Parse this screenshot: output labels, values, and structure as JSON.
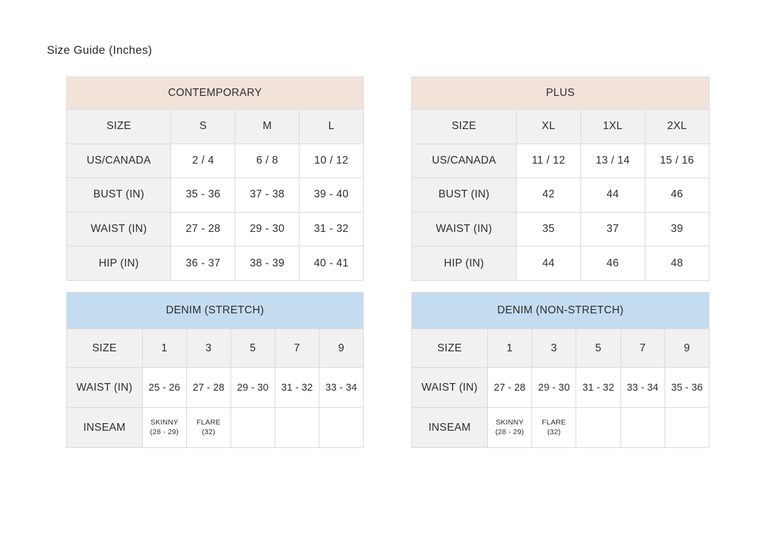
{
  "page": {
    "title": "Size Guide (Inches)"
  },
  "colors": {
    "contemporary_header_bg": "#f2e3da",
    "denim_header_bg": "#c3dcf0",
    "label_cell_bg": "#f2f1f2",
    "border": "#dadada",
    "text": "#2d2d2d"
  },
  "tables": {
    "contemporary": {
      "title": "CONTEMPORARY",
      "size_row": {
        "label": "SIZE",
        "values": [
          "S",
          "M",
          "L"
        ]
      },
      "rows": [
        {
          "label": "US/CANADA",
          "values": [
            "2 / 4",
            "6 / 8",
            "10 / 12"
          ]
        },
        {
          "label": "BUST (IN)",
          "values": [
            "35 - 36",
            "37 - 38",
            "39 - 40"
          ]
        },
        {
          "label": "WAIST (IN)",
          "values": [
            "27 - 28",
            "29 - 30",
            "31 - 32"
          ]
        },
        {
          "label": "HIP (IN)",
          "values": [
            "36 - 37",
            "38 - 39",
            "40 - 41"
          ]
        }
      ]
    },
    "plus": {
      "title": "PLUS",
      "size_row": {
        "label": "SIZE",
        "values": [
          "XL",
          "1XL",
          "2XL"
        ]
      },
      "rows": [
        {
          "label": "US/CANADA",
          "values": [
            "11 / 12",
            "13 / 14",
            "15 / 16"
          ]
        },
        {
          "label": "BUST (IN)",
          "values": [
            "42",
            "44",
            "46"
          ]
        },
        {
          "label": "WAIST (IN)",
          "values": [
            "35",
            "37",
            "39"
          ]
        },
        {
          "label": "HIP (IN)",
          "values": [
            "44",
            "46",
            "48"
          ]
        }
      ]
    },
    "denim_stretch": {
      "title": "DENIM (STRETCH)",
      "size_row": {
        "label": "SIZE",
        "values": [
          "1",
          "3",
          "5",
          "7",
          "9"
        ]
      },
      "waist_row": {
        "label": "WAIST (IN)",
        "values": [
          "25 - 26",
          "27 - 28",
          "29 - 30",
          "31 - 32",
          "33 - 34"
        ]
      },
      "inseam_row": {
        "label": "INSEAM",
        "cells": [
          {
            "style": "SKINNY",
            "detail": "(28 - 29)"
          },
          {
            "style": "FLARE",
            "detail": "(32)"
          }
        ]
      }
    },
    "denim_non_stretch": {
      "title": "DENIM (NON-STRETCH)",
      "size_row": {
        "label": "SIZE",
        "values": [
          "1",
          "3",
          "5",
          "7",
          "9"
        ]
      },
      "waist_row": {
        "label": "WAIST (IN)",
        "values": [
          "27 - 28",
          "29 - 30",
          "31 - 32",
          "33 - 34",
          "35 - 36"
        ]
      },
      "inseam_row": {
        "label": "INSEAM",
        "cells": [
          {
            "style": "SKINNY",
            "detail": "(28 - 29)"
          },
          {
            "style": "FLARE",
            "detail": "(32)"
          }
        ]
      }
    }
  }
}
